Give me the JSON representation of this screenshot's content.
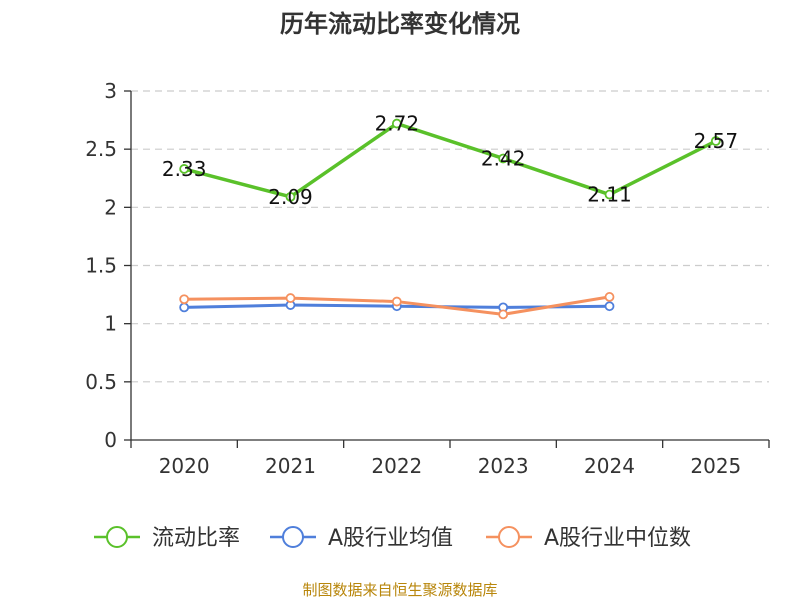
{
  "title": "历年流动比率变化情况",
  "source_note": "制图数据来自恒生聚源数据库",
  "chart_data": {
    "type": "line",
    "title": "历年流动比率变化情况",
    "xlabel": "",
    "ylabel": "",
    "categories": [
      "2020",
      "2021",
      "2022",
      "2023",
      "2024",
      "2025"
    ],
    "ylim": [
      0,
      3
    ],
    "yticks": [
      "0",
      "0.5",
      "1",
      "1.5",
      "2",
      "2.5",
      "3"
    ],
    "grid": true,
    "legend_position": "bottom",
    "series": [
      {
        "name": "流动比率",
        "color": "#5ac12a",
        "values": [
          2.33,
          2.09,
          2.72,
          2.42,
          2.11,
          2.57
        ],
        "labels": [
          "2.33",
          "2.09",
          "2.72",
          "2.42",
          "2.11",
          "2.57"
        ]
      },
      {
        "name": "A股行业均值",
        "color": "#4f7fdb",
        "values": [
          1.14,
          1.16,
          1.15,
          1.14,
          1.15,
          null
        ]
      },
      {
        "name": "A股行业中位数",
        "color": "#f5915f",
        "values": [
          1.21,
          1.22,
          1.19,
          1.08,
          1.23,
          null
        ]
      }
    ]
  }
}
